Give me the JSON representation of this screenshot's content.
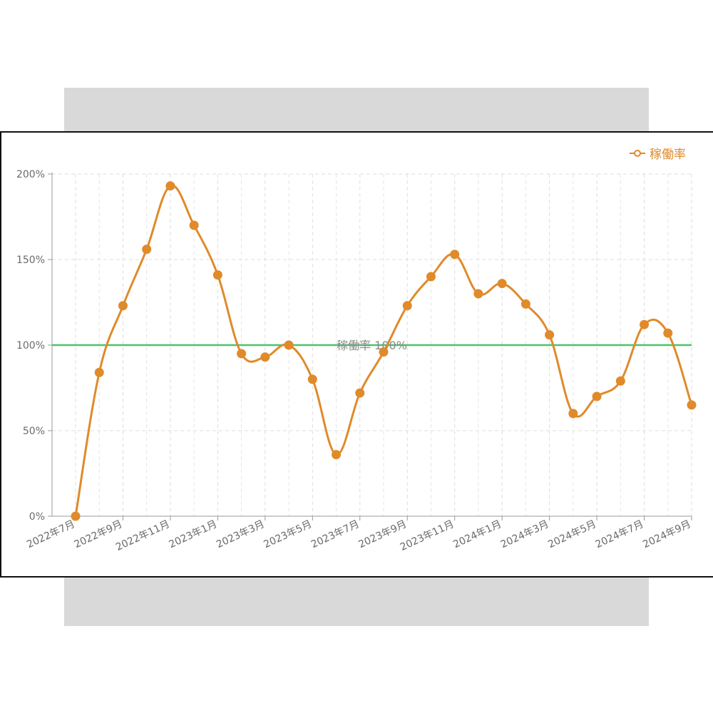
{
  "chart_data": {
    "type": "line",
    "series": [
      {
        "name": "稼働率",
        "color": "#e08a2a",
        "x": [
          "2022年7月",
          "2022年8月",
          "2022年9月",
          "2022年10月",
          "2022年11月",
          "2022年12月",
          "2023年1月",
          "2023年2月",
          "2023年3月",
          "2023年4月",
          "2023年5月",
          "2023年6月",
          "2023年7月",
          "2023年8月",
          "2023年9月",
          "2023年10月",
          "2023年11月",
          "2023年12月",
          "2024年1月",
          "2024年2月",
          "2024年3月",
          "2024年4月",
          "2024年5月",
          "2024年6月",
          "2024年7月",
          "2024年8月",
          "2024年9月"
        ],
        "values": [
          0,
          84,
          123,
          156,
          193,
          170,
          141,
          95,
          93,
          100,
          80,
          36,
          72,
          96,
          123,
          140,
          153,
          130,
          136,
          124,
          106,
          60,
          70,
          79,
          112,
          107,
          65
        ]
      }
    ],
    "x_tick_labels": [
      "2022年7月",
      "2022年9月",
      "2022年11月",
      "2023年1月",
      "2023年3月",
      "2023年5月",
      "2023年7月",
      "2023年9月",
      "2023年11月",
      "2024年1月",
      "2024年3月",
      "2024年5月",
      "2024年7月",
      "2024年9月"
    ],
    "y_ticks": [
      "0%",
      "50%",
      "100%",
      "150%",
      "200%"
    ],
    "ylim": [
      0,
      200
    ],
    "reference_line": {
      "value": 100,
      "label": "稼働率 100%",
      "color": "#4cc36a"
    },
    "grid": true,
    "legend_position": "top-right",
    "legend": {
      "label": "稼働率"
    }
  }
}
